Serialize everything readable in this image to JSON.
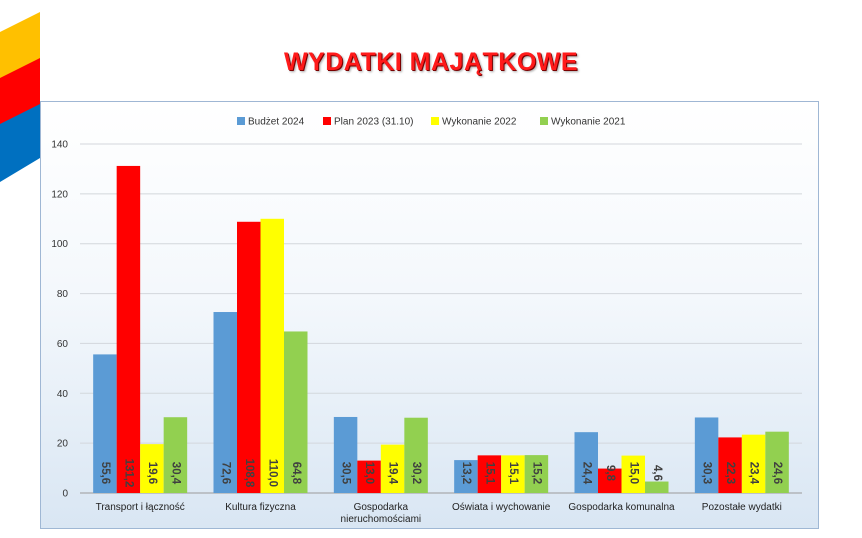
{
  "title": "WYDATKI MAJĄTKOWE",
  "chart_data": {
    "type": "bar",
    "categories": [
      [
        "Transport i łączność"
      ],
      [
        "Kultura fizyczna"
      ],
      [
        "Gospodarka",
        "nieruchomościami"
      ],
      [
        "Oświata i wychowanie"
      ],
      [
        "Gospodarka komunalna"
      ],
      [
        "Pozostałe wydatki"
      ]
    ],
    "series": [
      {
        "name": "Budżet 2024",
        "color": "#5b9bd5",
        "values": [
          55.6,
          72.6,
          30.5,
          13.2,
          24.4,
          30.3
        ],
        "labels": [
          "55,6",
          "72,6",
          "30,5",
          "13,2",
          "24,4",
          "30,3"
        ]
      },
      {
        "name": "Plan 2023 (31.10)",
        "color": "#ff0000",
        "values": [
          131.2,
          108.8,
          13.0,
          15.1,
          9.8,
          22.3
        ],
        "labels": [
          "131,2",
          "108,8",
          "13,0",
          "15,1",
          "9,8",
          "22,3"
        ]
      },
      {
        "name": "Wykonanie 2022",
        "color": "#ffff00",
        "values": [
          19.6,
          110.0,
          19.4,
          15.1,
          15.0,
          23.4
        ],
        "labels": [
          "19,6",
          "110,0",
          "19,4",
          "15,1",
          "15,0",
          "23,4"
        ]
      },
      {
        "name": "Wykonanie 2021",
        "color": "#92d050",
        "values": [
          30.4,
          64.8,
          30.2,
          15.2,
          4.6,
          24.6
        ],
        "labels": [
          "30,4",
          "64,8",
          "30,2",
          "15,2",
          "4,6",
          "24,6"
        ]
      }
    ],
    "ylim": [
      0,
      140
    ],
    "yticks": [
      0,
      20,
      40,
      60,
      80,
      100,
      120,
      140
    ],
    "grid": true,
    "legend": "top",
    "label_color": "#404040"
  },
  "decoration": {
    "colors": [
      "#ffc000",
      "#ff0000",
      "#0070c0"
    ]
  }
}
